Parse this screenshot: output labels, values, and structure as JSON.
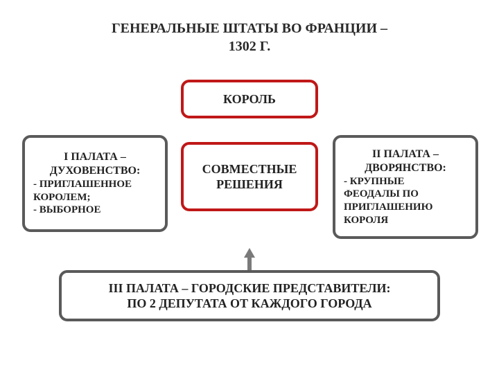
{
  "title_line1": "ГЕНЕРАЛЬНЫЕ ШТАТЫ ВО ФРАНЦИИ –",
  "title_line2": "1302 Г.",
  "colors": {
    "king_border": "#c01818",
    "center_border": "#c01818",
    "left_border": "#5a5a5a",
    "right_border": "#5a5a5a",
    "bottom_border": "#5a5a5a",
    "arrow": "#7a7a7a",
    "background": "#ffffff",
    "text": "#222222"
  },
  "nodes": {
    "king": {
      "label": "КОРОЛЬ"
    },
    "center": {
      "line1": "СОВМЕСТНЫЕ",
      "line2": "РЕШЕНИЯ"
    },
    "left": {
      "title1": "I ПАЛАТА –",
      "title2": "ДУХОВЕНСТВО:",
      "b1": "- ПРИГЛАШЕННОЕ",
      "b1b": "  КОРОЛЕМ;",
      "b2": "- ВЫБОРНОЕ"
    },
    "right": {
      "title1": "II ПАЛАТА –",
      "title2": "ДВОРЯНСТВО:",
      "b1": "- КРУПНЫЕ",
      "b1b": "  ФЕОДАЛЫ ПО",
      "b1c": "  ПРИГЛАШЕНИЮ",
      "b1d": "  КОРОЛЯ"
    },
    "bottom": {
      "line1": "III ПАЛАТА – ГОРОДСКИЕ ПРЕДСТАВИТЕЛИ:",
      "line2": "ПО 2 ДЕПУТАТА ОТ КАЖДОГО ГОРОДА"
    }
  },
  "fonts": {
    "title_pt": 20,
    "node_title_pt": 16,
    "bullet_pt": 15
  }
}
